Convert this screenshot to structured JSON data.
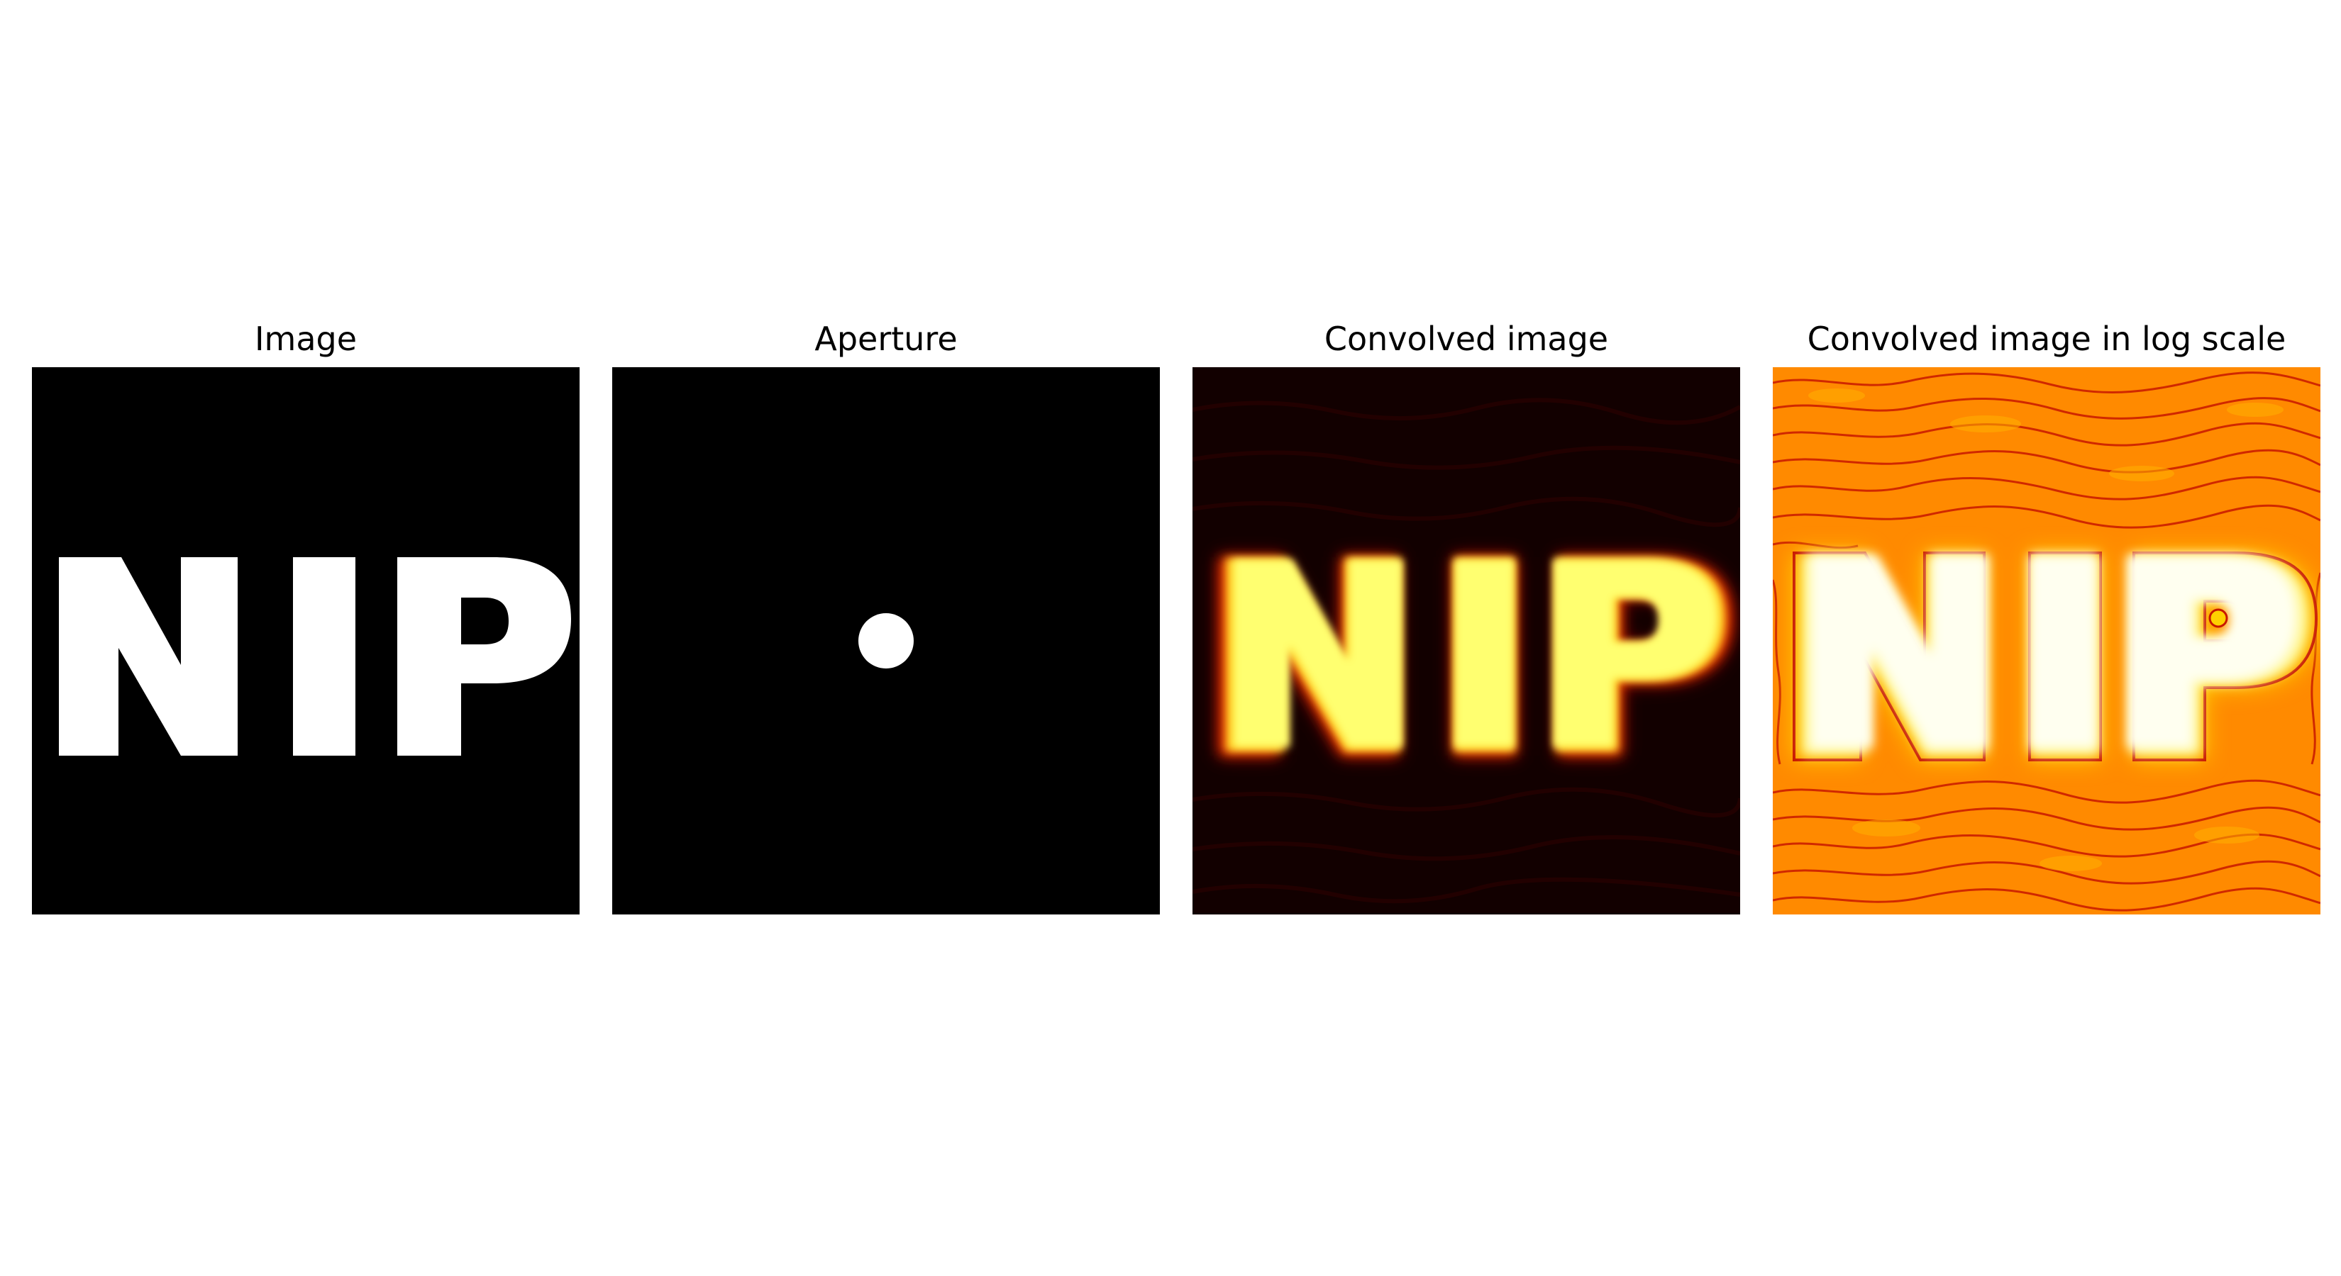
{
  "figure": {
    "panels": [
      {
        "title": "Image",
        "content": "NIP",
        "colormap": "gray"
      },
      {
        "title": "Aperture",
        "content": "circular aperture",
        "colormap": "gray"
      },
      {
        "title": "Convolved image",
        "content": "NIP",
        "colormap": "hot"
      },
      {
        "title": "Convolved image in log scale",
        "content": "NIP",
        "colormap": "hot",
        "scale": "log"
      }
    ]
  },
  "colors": {
    "background": "#ffffff",
    "image_background": "#000000",
    "image_foreground": "#ffffff",
    "hot_dark": "#120000",
    "hot_red": "#c80000",
    "hot_orange": "#ff7a00",
    "hot_yellow": "#ffff40",
    "hot_white": "#fffff0"
  }
}
